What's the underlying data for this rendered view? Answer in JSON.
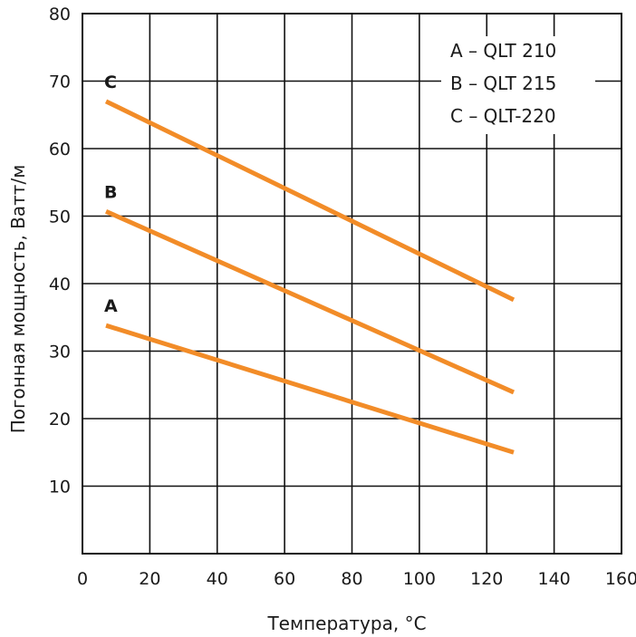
{
  "chart_data": {
    "type": "line",
    "xlabel": "Температура, °C",
    "ylabel": "Погонная мощность, Ватт/м",
    "xlim": [
      0,
      160
    ],
    "ylim": [
      0,
      80
    ],
    "x_ticks": [
      0,
      20,
      40,
      60,
      80,
      100,
      120,
      140,
      160
    ],
    "y_ticks": [
      10,
      20,
      30,
      40,
      50,
      60,
      70,
      80
    ],
    "grid": true,
    "legend_position": "top-right",
    "legend": [
      "A – QLT 210",
      "B – QLT 215",
      "C – QLT-220"
    ],
    "line_color": "#f28c28",
    "series": [
      {
        "label": "A",
        "x": [
          7,
          128
        ],
        "y": [
          33.8,
          15.0
        ]
      },
      {
        "label": "B",
        "x": [
          7,
          128
        ],
        "y": [
          50.7,
          23.9
        ]
      },
      {
        "label": "C",
        "x": [
          7,
          128
        ],
        "y": [
          67.0,
          37.6
        ]
      }
    ]
  }
}
